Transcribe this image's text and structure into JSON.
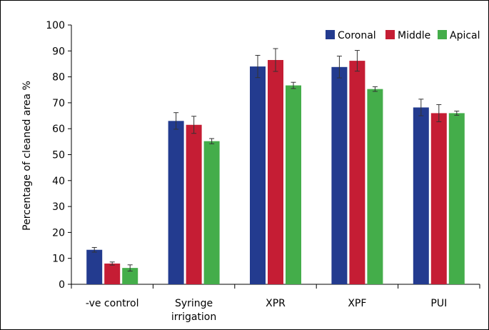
{
  "chart_data": {
    "type": "bar",
    "ylabel": "Percentage of cleaned area %",
    "xlabel": "",
    "ylim": [
      0,
      100
    ],
    "yticks": [
      0,
      10,
      20,
      30,
      40,
      50,
      60,
      70,
      80,
      90,
      100
    ],
    "categories": [
      [
        "-ve control"
      ],
      [
        "Syringe",
        "irrigation"
      ],
      [
        "XPR"
      ],
      [
        "XPF"
      ],
      [
        "PUI"
      ]
    ],
    "legend_position": "top-right",
    "grid": false,
    "series": [
      {
        "name": "Coronal",
        "color": "#233b8f",
        "values": [
          13.3,
          63.0,
          84.0,
          83.8,
          68.2
        ],
        "errors": [
          0.9,
          3.2,
          4.3,
          4.2,
          3.2
        ]
      },
      {
        "name": "Middle",
        "color": "#c51d34",
        "values": [
          8.0,
          61.5,
          86.5,
          86.2,
          66.0
        ],
        "errors": [
          0.6,
          3.3,
          4.4,
          4.0,
          3.3
        ]
      },
      {
        "name": "Apical",
        "color": "#44ad4a",
        "values": [
          6.3,
          55.2,
          76.7,
          75.3,
          66.0
        ],
        "errors": [
          1.2,
          1.0,
          1.2,
          0.9,
          0.8
        ]
      }
    ]
  }
}
